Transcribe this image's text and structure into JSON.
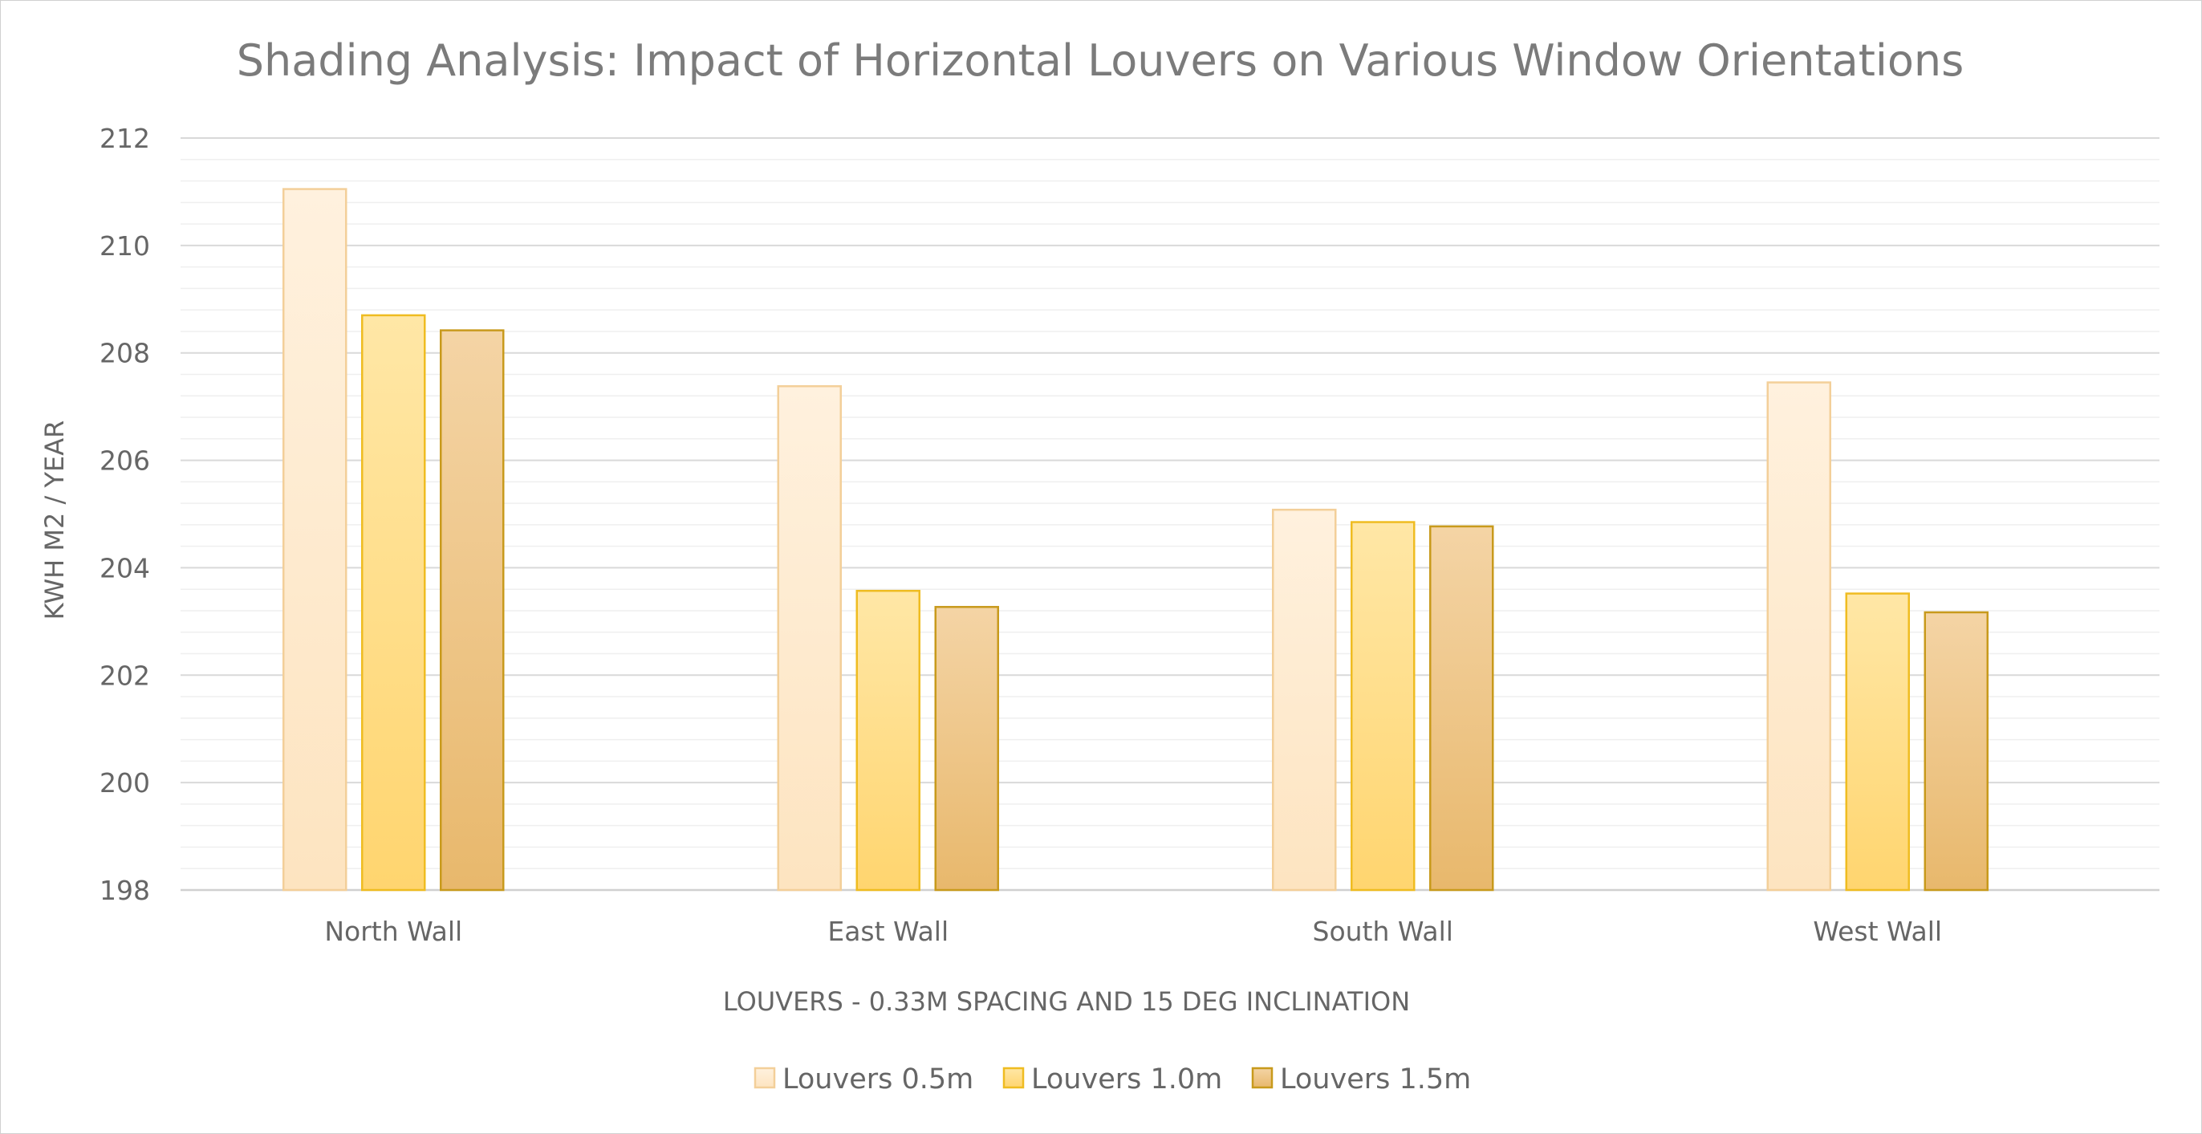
{
  "chart_data": {
    "type": "bar",
    "title": "Shading Analysis: Impact of Horizontal Louvers on Various Window Orientations",
    "xlabel": "LOUVERS - 0.33M SPACING AND 15 DEG INCLINATION",
    "ylabel": "KWH  M2 / YEAR",
    "ylim": [
      198,
      212
    ],
    "yticks": [
      "198",
      "200",
      "202",
      "204",
      "206",
      "208",
      "210",
      "212"
    ],
    "categories": [
      "North Wall",
      "East Wall",
      "South Wall",
      "West Wall"
    ],
    "series": [
      {
        "name": "Louvers 0.5m",
        "values": [
          211.05,
          207.38,
          205.08,
          207.45
        ],
        "fill_top": "#fff1de",
        "fill_bottom": "#fde4c0",
        "stroke": "#f3cf99"
      },
      {
        "name": "Louvers 1.0m",
        "values": [
          208.7,
          203.57,
          204.85,
          203.52
        ],
        "fill_top": "#ffe7a6",
        "fill_bottom": "#ffd56f",
        "stroke": "#efbc21"
      },
      {
        "name": "Louvers 1.5m",
        "values": [
          208.42,
          203.27,
          204.77,
          203.17
        ],
        "fill_top": "#f4d4a5",
        "fill_bottom": "#e8b86c",
        "stroke": "#c89a1c"
      }
    ],
    "grid": true,
    "minor_grid": true,
    "legend_position": "bottom"
  }
}
